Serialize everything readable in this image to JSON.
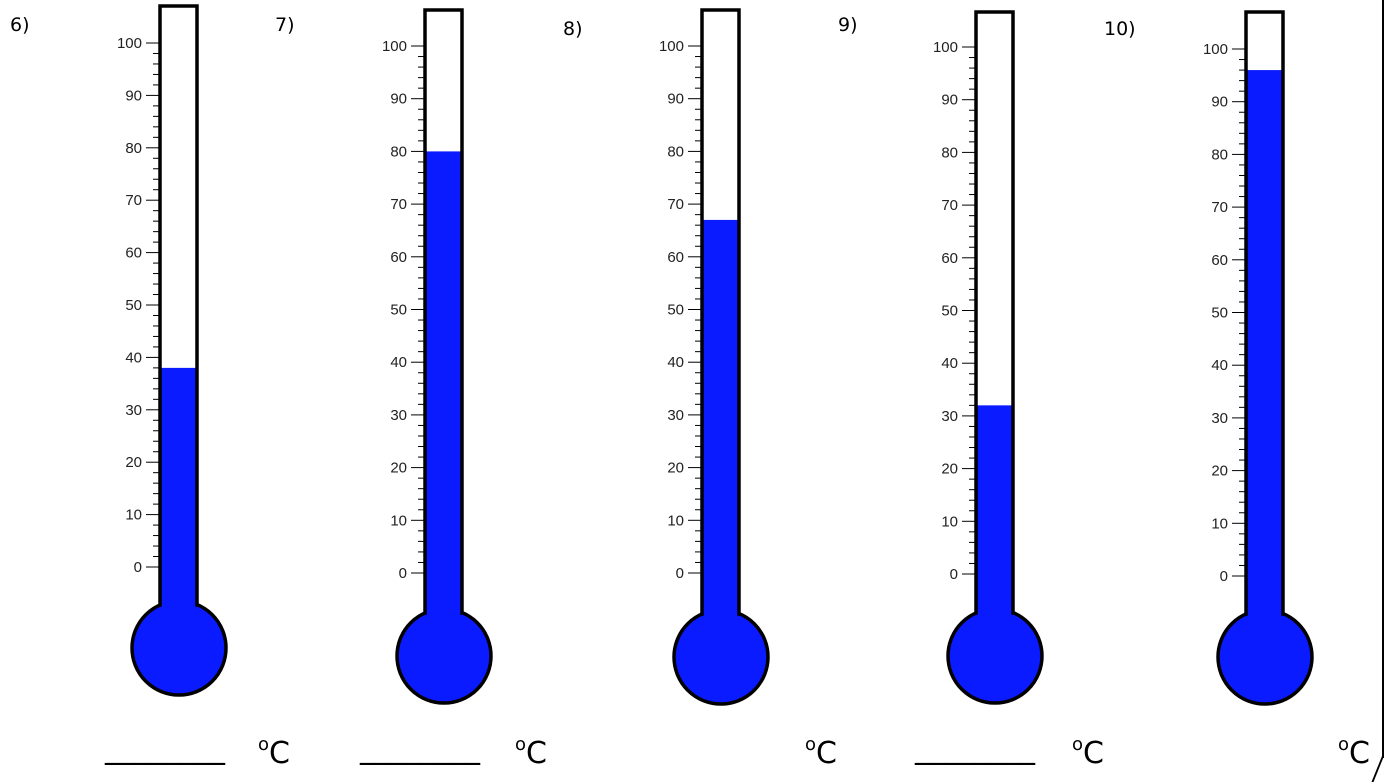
{
  "items": [
    {
      "number": "6)",
      "level": 38,
      "answer_blank": "________",
      "unit": "C",
      "degree": "o"
    },
    {
      "number": "7)",
      "level": 80,
      "answer_blank": "________",
      "unit": "C",
      "degree": "o"
    },
    {
      "number": "8)",
      "level": 67,
      "answer_blank": "",
      "unit": "C",
      "degree": "o"
    },
    {
      "number": "9)",
      "level": 32,
      "answer_blank": "________",
      "unit": "C",
      "degree": "o"
    },
    {
      "number": "10)",
      "level": 96,
      "answer_blank": "",
      "unit": "C",
      "degree": "o"
    }
  ],
  "scale": {
    "min": 0,
    "max": 100,
    "major_step": 10,
    "minor_step": 2,
    "tick_labels": [
      "0",
      "10",
      "20",
      "30",
      "40",
      "50",
      "60",
      "70",
      "80",
      "90",
      "100"
    ]
  },
  "colors": {
    "fill": "#0a1bff",
    "outline": "#000000",
    "tube": "#ffffff"
  }
}
